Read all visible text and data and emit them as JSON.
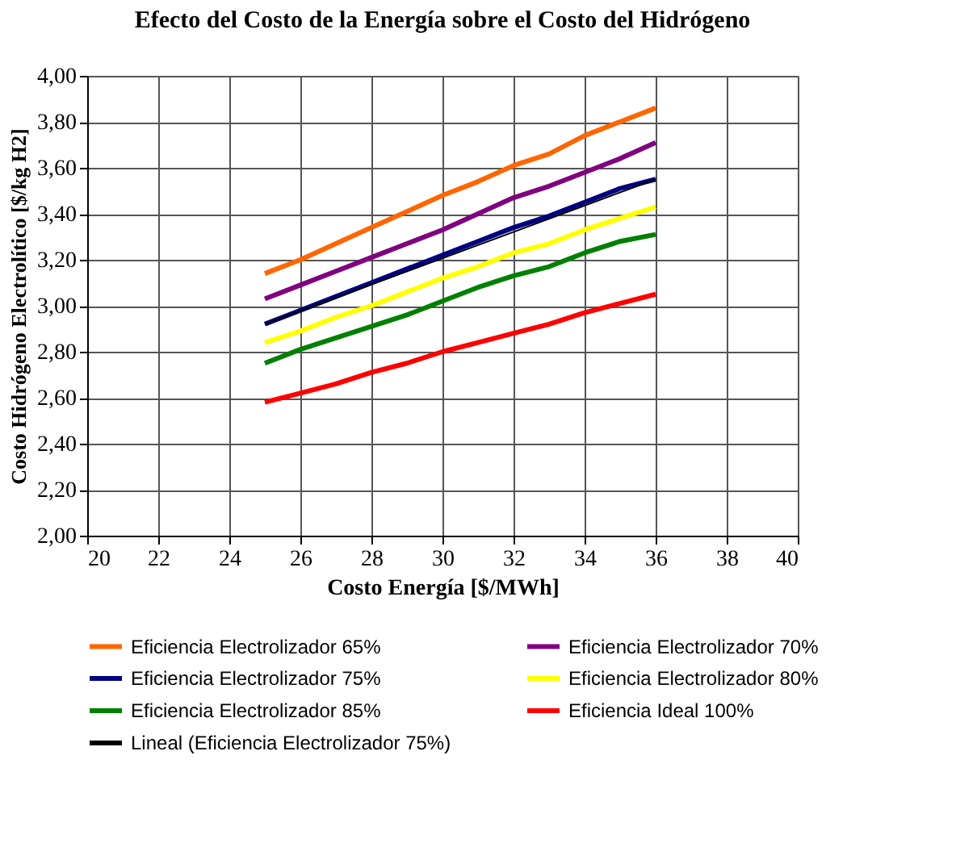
{
  "chart_data": {
    "type": "line",
    "title": "Efecto del Costo de la Energía sobre el Costo del Hidrógeno",
    "xlabel": "Costo Energía [$/MWh]",
    "ylabel": "Costo Hidrógeno Electrolítico [$/kg H2]",
    "x": [
      25,
      26,
      27,
      28,
      29,
      30,
      31,
      32,
      33,
      34,
      35,
      36
    ],
    "series": [
      {
        "name": "Eficiencia Electrolizador 65%",
        "color": "#ff6600",
        "values": [
          3.14,
          3.2,
          3.27,
          3.34,
          3.41,
          3.48,
          3.54,
          3.61,
          3.66,
          3.74,
          3.8,
          3.86
        ]
      },
      {
        "name": "Eficiencia Electrolizador 70%",
        "color": "#800080",
        "values": [
          3.03,
          3.09,
          3.15,
          3.21,
          3.27,
          3.33,
          3.4,
          3.47,
          3.52,
          3.58,
          3.64,
          3.71
        ]
      },
      {
        "name": "Eficiencia Electrolizador 75%",
        "color": "#000080",
        "values": [
          2.92,
          2.98,
          3.04,
          3.1,
          3.16,
          3.22,
          3.28,
          3.34,
          3.39,
          3.45,
          3.51,
          3.55
        ]
      },
      {
        "name": "Eficiencia Electrolizador 80%",
        "color": "#ffff00",
        "values": [
          2.84,
          2.89,
          2.95,
          3.0,
          3.06,
          3.12,
          3.17,
          3.23,
          3.27,
          3.33,
          3.38,
          3.43
        ]
      },
      {
        "name": "Eficiencia Electrolizador 85%",
        "color": "#008000",
        "values": [
          2.75,
          2.81,
          2.86,
          2.91,
          2.96,
          3.02,
          3.08,
          3.13,
          3.17,
          3.23,
          3.28,
          3.31
        ]
      },
      {
        "name": "Eficiencia Ideal 100%",
        "color": "#ff0000",
        "values": [
          2.58,
          2.62,
          2.66,
          2.71,
          2.75,
          2.8,
          2.84,
          2.88,
          2.92,
          2.97,
          3.01,
          3.05
        ]
      },
      {
        "name": "Lineal (Eficiencia Electrolizador 75%)",
        "color": "#000000",
        "type": "line",
        "x": [
          25,
          36
        ],
        "values": [
          2.92,
          3.55
        ]
      }
    ],
    "xlim": [
      20,
      40
    ],
    "xticks": [
      20,
      22,
      24,
      26,
      28,
      30,
      32,
      34,
      36,
      38,
      40
    ],
    "ylim": [
      2.0,
      4.0
    ],
    "yticks": [
      {
        "value": 2.0,
        "label": "2,00"
      },
      {
        "value": 2.2,
        "label": "2,20"
      },
      {
        "value": 2.4,
        "label": "2,40"
      },
      {
        "value": 2.6,
        "label": "2,60"
      },
      {
        "value": 2.8,
        "label": "2,80"
      },
      {
        "value": 3.0,
        "label": "3,00"
      },
      {
        "value": 3.2,
        "label": "3,20"
      },
      {
        "value": 3.4,
        "label": "3,40"
      },
      {
        "value": 3.6,
        "label": "3,60"
      },
      {
        "value": 3.8,
        "label": "3,80"
      },
      {
        "value": 4.0,
        "label": "4,00"
      }
    ],
    "grid": true,
    "legend": "bottom",
    "marker": "none",
    "line_style": "solid"
  }
}
